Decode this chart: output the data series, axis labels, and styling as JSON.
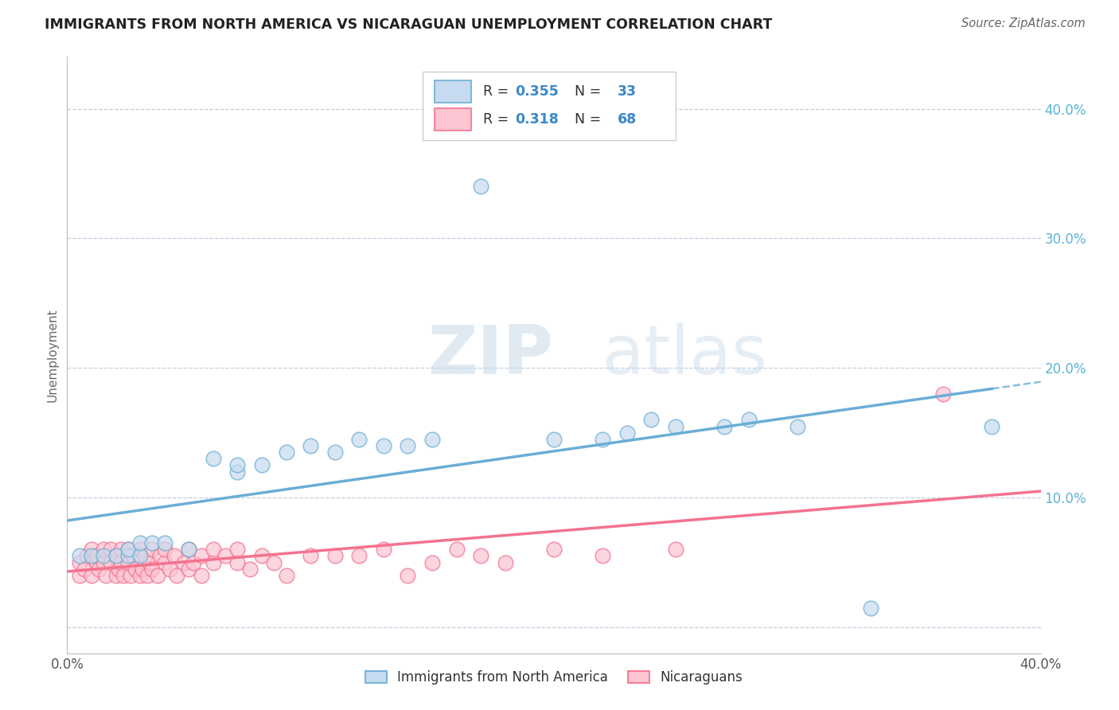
{
  "title": "IMMIGRANTS FROM NORTH AMERICA VS NICARAGUAN UNEMPLOYMENT CORRELATION CHART",
  "source": "Source: ZipAtlas.com",
  "ylabel": "Unemployment",
  "xlim": [
    0.0,
    0.4
  ],
  "ylim": [
    -0.02,
    0.44
  ],
  "yticks": [
    0.0,
    0.1,
    0.2,
    0.3,
    0.4
  ],
  "ytick_labels": [
    "",
    "10.0%",
    "20.0%",
    "30.0%",
    "40.0%"
  ],
  "series1_color": "#6baed6",
  "series1_fill": "#c6dbef",
  "series2_color": "#f4728f",
  "series2_fill": "#fcc5d2",
  "series1_name": "Immigrants from North America",
  "series2_name": "Nicaraguans",
  "background_color": "#ffffff",
  "grid_color": "#c0cfe0",
  "blue_scatter_x": [
    0.005,
    0.01,
    0.015,
    0.02,
    0.025,
    0.025,
    0.03,
    0.03,
    0.035,
    0.04,
    0.05,
    0.06,
    0.07,
    0.07,
    0.08,
    0.09,
    0.1,
    0.11,
    0.12,
    0.13,
    0.14,
    0.15,
    0.17,
    0.2,
    0.22,
    0.23,
    0.24,
    0.25,
    0.27,
    0.28,
    0.3,
    0.33,
    0.38
  ],
  "blue_scatter_y": [
    0.055,
    0.055,
    0.055,
    0.055,
    0.055,
    0.06,
    0.055,
    0.065,
    0.065,
    0.065,
    0.06,
    0.13,
    0.12,
    0.125,
    0.125,
    0.135,
    0.14,
    0.135,
    0.145,
    0.14,
    0.14,
    0.145,
    0.34,
    0.145,
    0.145,
    0.15,
    0.16,
    0.155,
    0.155,
    0.16,
    0.155,
    0.015,
    0.155
  ],
  "pink_scatter_x": [
    0.005,
    0.005,
    0.007,
    0.008,
    0.01,
    0.01,
    0.012,
    0.012,
    0.013,
    0.015,
    0.015,
    0.016,
    0.018,
    0.018,
    0.02,
    0.02,
    0.021,
    0.022,
    0.022,
    0.023,
    0.025,
    0.025,
    0.026,
    0.027,
    0.028,
    0.03,
    0.03,
    0.031,
    0.032,
    0.033,
    0.034,
    0.035,
    0.035,
    0.037,
    0.038,
    0.04,
    0.04,
    0.042,
    0.044,
    0.045,
    0.048,
    0.05,
    0.05,
    0.052,
    0.055,
    0.055,
    0.06,
    0.06,
    0.065,
    0.07,
    0.07,
    0.075,
    0.08,
    0.085,
    0.09,
    0.1,
    0.11,
    0.12,
    0.13,
    0.14,
    0.15,
    0.16,
    0.17,
    0.18,
    0.2,
    0.22,
    0.25,
    0.36
  ],
  "pink_scatter_y": [
    0.04,
    0.05,
    0.045,
    0.055,
    0.04,
    0.06,
    0.05,
    0.055,
    0.045,
    0.05,
    0.06,
    0.04,
    0.05,
    0.06,
    0.04,
    0.055,
    0.045,
    0.05,
    0.06,
    0.04,
    0.05,
    0.06,
    0.04,
    0.055,
    0.045,
    0.04,
    0.06,
    0.045,
    0.055,
    0.04,
    0.05,
    0.045,
    0.06,
    0.04,
    0.055,
    0.05,
    0.06,
    0.045,
    0.055,
    0.04,
    0.05,
    0.045,
    0.06,
    0.05,
    0.055,
    0.04,
    0.05,
    0.06,
    0.055,
    0.05,
    0.06,
    0.045,
    0.055,
    0.05,
    0.04,
    0.055,
    0.055,
    0.055,
    0.06,
    0.04,
    0.05,
    0.06,
    0.055,
    0.05,
    0.06,
    0.055,
    0.06,
    0.18
  ]
}
